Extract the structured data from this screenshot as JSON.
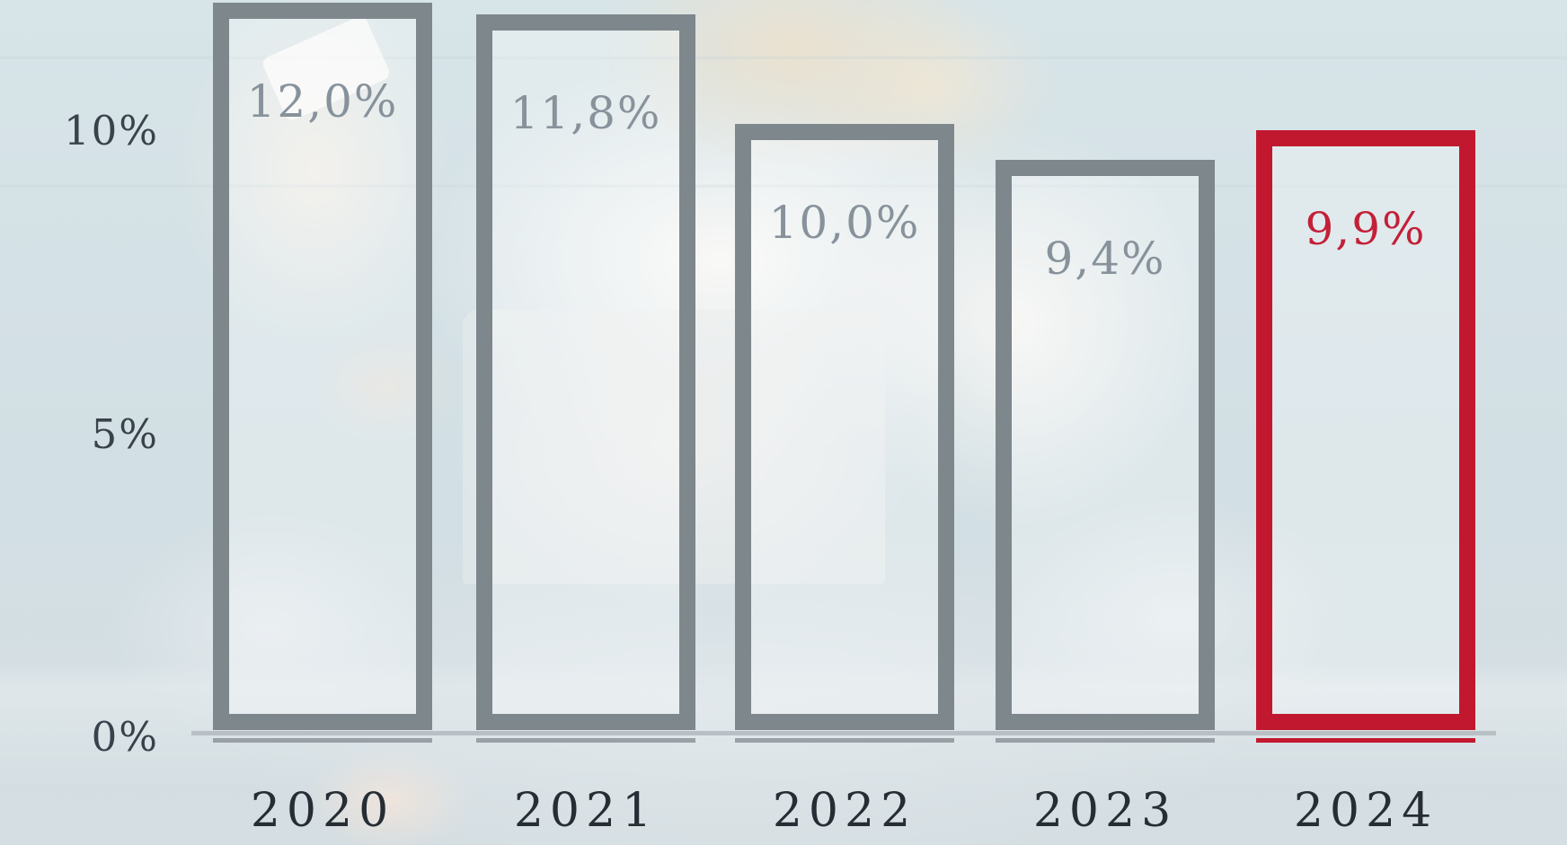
{
  "background_photo_alt": "faded photo of a person sitting cross-legged with a laptop, holding a bank card",
  "colors": {
    "background": "#d5e2e7",
    "bar_outline_gray": "#7e878c",
    "bar_outline_red": "#c2182f",
    "bar_fill": "rgba(255,255,255,0.28)",
    "data_label_gray": "#87929b",
    "data_label_red": "#c32038",
    "axis_line": "#b8c0c5",
    "underline_gray": "#99a1a7",
    "tick_text": "#39424b",
    "year_text": "#262d34"
  },
  "chart_data": {
    "type": "bar",
    "title": "",
    "xlabel": "",
    "ylabel": "",
    "categories": [
      "2020",
      "2021",
      "2022",
      "2023",
      "2024"
    ],
    "values": [
      12.0,
      11.8,
      10.0,
      9.4,
      9.9
    ],
    "data_labels": [
      "12,0%",
      "11,8%",
      "10,0%",
      "9,4%",
      "9,9%"
    ],
    "unit": "%",
    "decimal_separator": ",",
    "highlight_index": 4,
    "highlight_category": "2024",
    "yticks": [
      {
        "value": 10,
        "label": "10%"
      },
      {
        "value": 5,
        "label": "5%"
      },
      {
        "value": 0,
        "label": "0%"
      }
    ],
    "ylim": [
      0,
      12.05
    ],
    "grid": false,
    "legend": false,
    "bar_style": "outlined-hollow"
  }
}
